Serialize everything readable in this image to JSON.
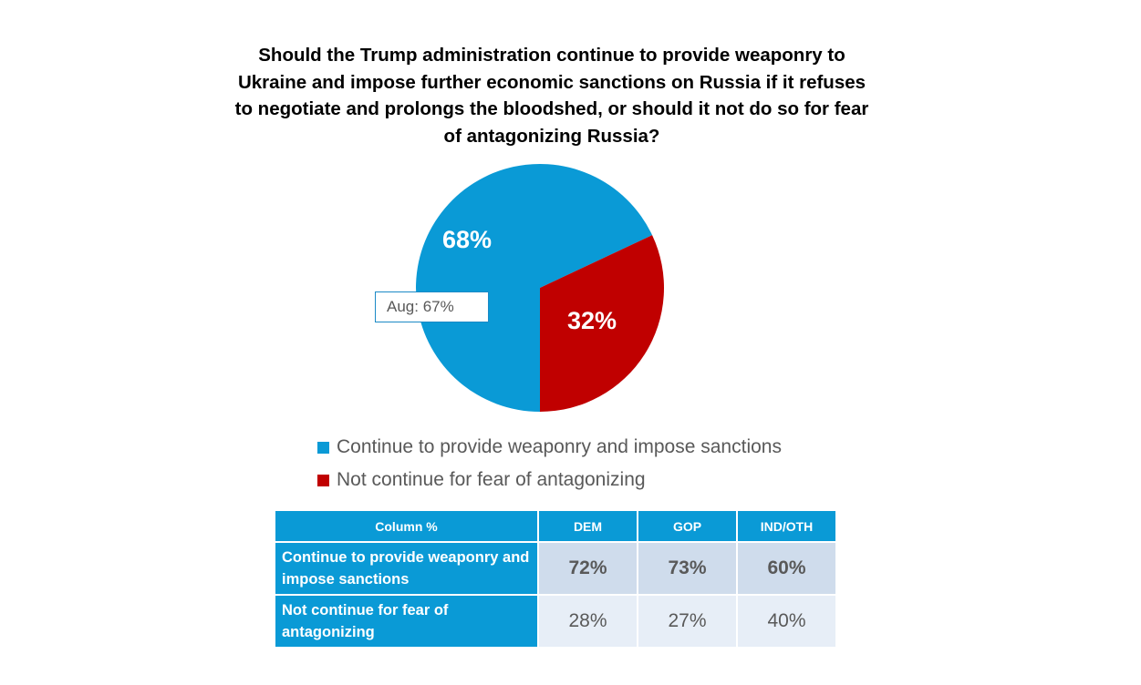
{
  "chart_data": {
    "type": "pie",
    "title": "Should the Trump administration continue to provide weaponry to Ukraine and impose further economic sanctions on Russia if it refuses to negotiate and prolongs the bloodshed, or should it not do so for fear of antagonizing Russia?",
    "slices": [
      {
        "label": "Continue to provide weaponry and impose sanctions",
        "value": 68,
        "display": "68%",
        "color": "#0a9ad6"
      },
      {
        "label": "Not continue for fear of antagonizing",
        "value": 32,
        "display": "32%",
        "color": "#c00000"
      }
    ],
    "annotation": "Aug: 67%",
    "legend": [
      {
        "label": "Continue to provide weaponry and impose sanctions",
        "color": "#0a9ad6"
      },
      {
        "label": "Not continue for fear of antagonizing",
        "color": "#c00000"
      }
    ]
  },
  "table": {
    "header": [
      "Column %",
      "DEM",
      "GOP",
      "IND/OTH"
    ],
    "rows": [
      {
        "label": "Continue to provide weaponry and impose sanctions",
        "values": [
          "72%",
          "73%",
          "60%"
        ]
      },
      {
        "label": "Not continue for fear of antagonizing",
        "values": [
          "28%",
          "27%",
          "40%"
        ]
      }
    ]
  }
}
